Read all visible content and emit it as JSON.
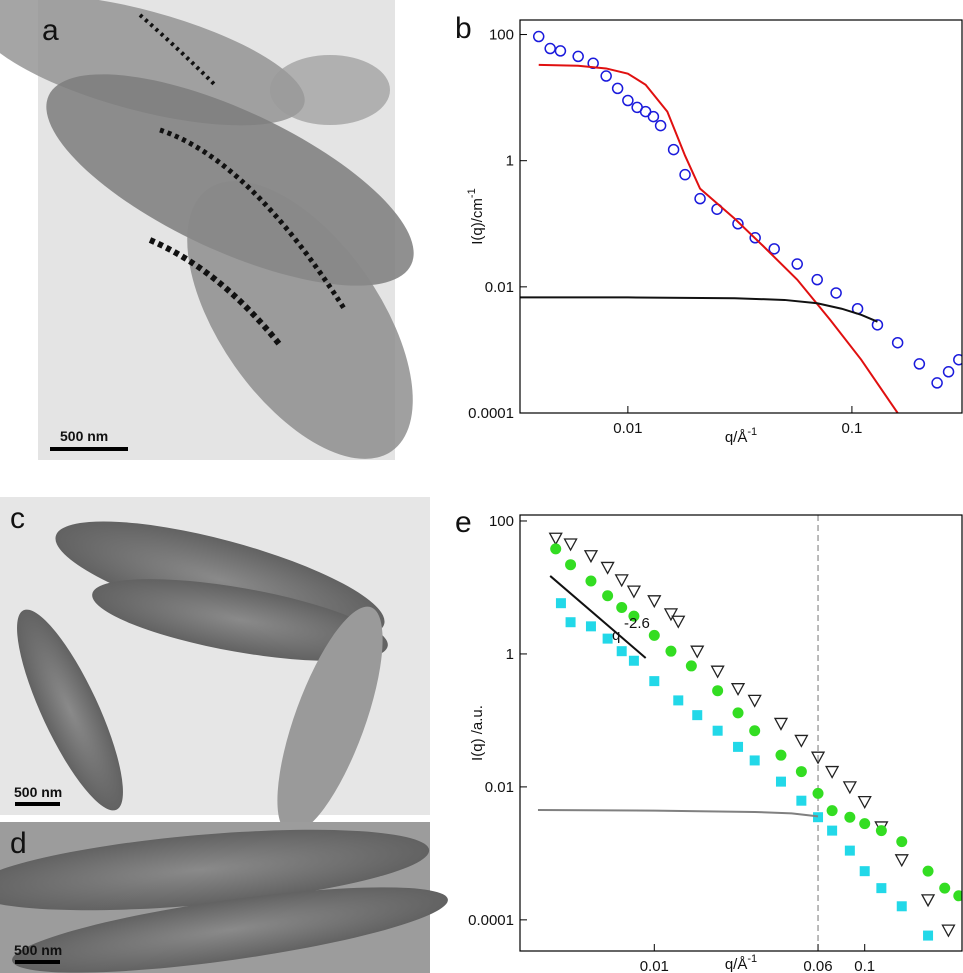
{
  "panels": {
    "labels": [
      "a",
      "b",
      "c",
      "d",
      "e"
    ],
    "scale_bars": [
      "500 nm",
      "500 nm",
      "500 nm"
    ]
  },
  "chart_data": [
    {
      "type": "scatter",
      "log_x": true,
      "log_y": true,
      "y_label": "I(q)/cm",
      "y_label_exponent": "-1",
      "x_label": "q/Å",
      "x_label_exponent": "-1",
      "xlim": [
        0.0033,
        0.31
      ],
      "ylim": [
        0.0001,
        170
      ],
      "xticks": [
        0.01,
        0.1
      ],
      "yticks": [
        100,
        1,
        0.01,
        0.0001
      ],
      "series": [
        {
          "marker": "circle-open",
          "color": "#1a1adc",
          "x": [
            0.004,
            0.0045,
            0.005,
            0.006,
            0.007,
            0.008,
            0.009,
            0.01,
            0.011,
            0.012,
            0.013,
            0.014,
            0.016,
            0.018,
            0.021,
            0.025,
            0.031,
            0.037,
            0.045,
            0.057,
            0.07,
            0.085,
            0.106,
            0.13,
            0.16,
            0.2,
            0.24,
            0.27,
            0.3
          ],
          "values": [
            93,
            60,
            55,
            45,
            35,
            22,
            14,
            9,
            7,
            6,
            5,
            3.6,
            1.5,
            0.6,
            0.25,
            0.17,
            0.1,
            0.06,
            0.04,
            0.023,
            0.013,
            0.008,
            0.0045,
            0.0025,
            0.0013,
            0.0006,
            0.0003,
            0.00045,
            0.0007
          ]
        },
        {
          "marker": "line",
          "color": "#e01010",
          "x": [
            0.004,
            0.006,
            0.008,
            0.01,
            0.012,
            0.015,
            0.018,
            0.021,
            0.03,
            0.04,
            0.057,
            0.08,
            0.11,
            0.16
          ],
          "values": [
            33,
            32,
            29,
            24,
            16,
            6,
            1.2,
            0.36,
            0.12,
            0.045,
            0.013,
            0.003,
            0.0007,
            0.0001
          ]
        },
        {
          "marker": "line",
          "color": "#111111",
          "x": [
            0.0033,
            0.01,
            0.03,
            0.05,
            0.07,
            0.09,
            0.11,
            0.13
          ],
          "values": [
            0.0068,
            0.0068,
            0.0066,
            0.0062,
            0.0055,
            0.0045,
            0.0036,
            0.0028
          ]
        }
      ]
    },
    {
      "type": "scatter",
      "log_x": true,
      "log_y": true,
      "y_label": "I(q) /a.u.",
      "x_label": "q/Å",
      "x_label_exponent": "-1",
      "xlim": [
        0.0023,
        0.29
      ],
      "ylim": [
        3.4e-05,
        123
      ],
      "xticks": [
        0.01,
        0.06,
        0.1
      ],
      "yticks": [
        100,
        1,
        0.01,
        0.0001
      ],
      "vline": 0.06,
      "annotations": [
        {
          "text": "q",
          "exponent": "-2.6"
        }
      ],
      "series": [
        {
          "marker": "line",
          "color": "#111111",
          "x": [
            0.0032,
            0.0091
          ],
          "values": [
            14.9,
            0.87
          ]
        },
        {
          "marker": "triangle-open",
          "color": "#222222",
          "x": [
            0.0034,
            0.004,
            0.005,
            0.006,
            0.007,
            0.008,
            0.01,
            0.012,
            0.013,
            0.016,
            0.02,
            0.025,
            0.03,
            0.04,
            0.05,
            0.06,
            0.07,
            0.085,
            0.1,
            0.12,
            0.15,
            0.2,
            0.25
          ],
          "values": [
            55,
            45,
            30,
            20,
            13,
            8.8,
            6.3,
            4,
            3.1,
            1.1,
            0.55,
            0.3,
            0.2,
            0.09,
            0.05,
            0.028,
            0.017,
            0.01,
            0.006,
            0.0025,
            0.0008,
            0.0002,
            7e-05
          ]
        },
        {
          "marker": "circle-filled",
          "color": "#33dd22",
          "x": [
            0.0034,
            0.004,
            0.005,
            0.006,
            0.007,
            0.008,
            0.01,
            0.012,
            0.015,
            0.02,
            0.025,
            0.03,
            0.04,
            0.05,
            0.06,
            0.07,
            0.085,
            0.1,
            0.12,
            0.15,
            0.2,
            0.24,
            0.28
          ],
          "values": [
            38,
            22,
            12.5,
            7.5,
            5,
            3.7,
            1.9,
            1.1,
            0.66,
            0.28,
            0.13,
            0.07,
            0.03,
            0.017,
            0.008,
            0.0044,
            0.0035,
            0.0028,
            0.0022,
            0.0015,
            0.00054,
            0.0003,
            0.00023
          ]
        },
        {
          "marker": "square-filled",
          "color": "#22d8e8",
          "x": [
            0.0036,
            0.004,
            0.005,
            0.006,
            0.007,
            0.008,
            0.01,
            0.013,
            0.016,
            0.02,
            0.025,
            0.03,
            0.04,
            0.05,
            0.06,
            0.07,
            0.085,
            0.1,
            0.12,
            0.15,
            0.2
          ],
          "values": [
            5.8,
            3,
            2.6,
            1.7,
            1.1,
            0.79,
            0.39,
            0.2,
            0.12,
            0.07,
            0.04,
            0.025,
            0.012,
            0.0062,
            0.0035,
            0.0022,
            0.0011,
            0.00054,
            0.0003,
            0.00016,
            5.8e-05
          ]
        },
        {
          "marker": "line",
          "color": "#808080",
          "x": [
            0.0028,
            0.01,
            0.03,
            0.045,
            0.06
          ],
          "values": [
            0.0045,
            0.0044,
            0.0042,
            0.004,
            0.0036
          ]
        }
      ]
    }
  ]
}
